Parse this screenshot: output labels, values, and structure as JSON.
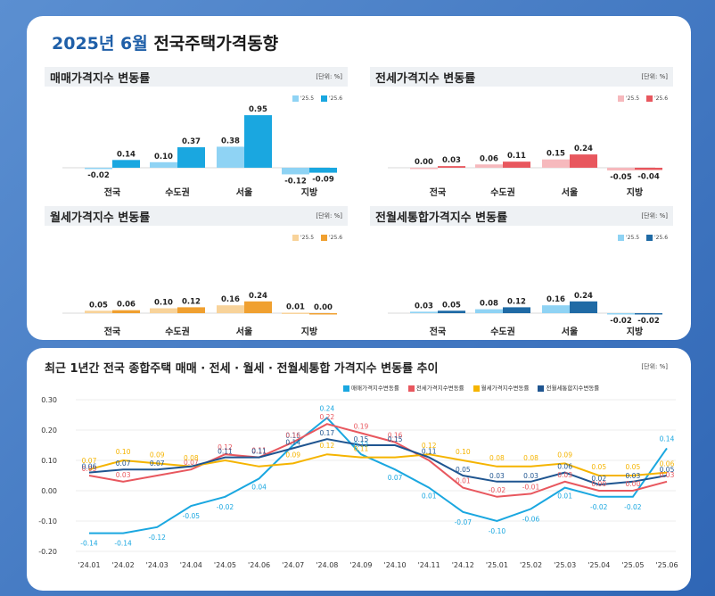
{
  "header": {
    "title_highlight": "2025년 6월",
    "title_rest": "전국주택가격동향"
  },
  "bar_charts": [
    {
      "id": "sale",
      "title": "매매가격지수 변동률",
      "unit": "[단위: %]",
      "legend": [
        "'25.5",
        "'25.6"
      ],
      "colors": {
        "prev": "#8fd3f4",
        "cur": "#1aa7e0"
      },
      "categories": [
        "전국",
        "수도권",
        "서울",
        "지방"
      ],
      "values_prev": [
        -0.02,
        0.1,
        0.38,
        -0.12
      ],
      "values_cur": [
        0.14,
        0.37,
        0.95,
        -0.09
      ],
      "labels_prev": [
        "-0.02",
        "0.10",
        "0.38",
        "-0.12"
      ],
      "labels_cur": [
        "0.14",
        "0.37",
        "0.95",
        "-0.09"
      ]
    },
    {
      "id": "jeonse",
      "title": "전세가격지수 변동률",
      "unit": "[단위: %]",
      "legend": [
        "'25.5",
        "'25.6"
      ],
      "colors": {
        "prev": "#f6b9bd",
        "cur": "#e8575e"
      },
      "categories": [
        "전국",
        "수도권",
        "서울",
        "지방"
      ],
      "values_prev": [
        0.0,
        0.06,
        0.15,
        -0.05
      ],
      "values_cur": [
        0.03,
        0.11,
        0.24,
        -0.04
      ],
      "labels_prev": [
        "0.00",
        "0.06",
        "0.15",
        "-0.05"
      ],
      "labels_cur": [
        "0.03",
        "0.11",
        "0.24",
        "-0.04"
      ]
    },
    {
      "id": "wolse",
      "title": "월세가격지수 변동률",
      "unit": "[단위: %]",
      "legend": [
        "'25.5",
        "'25.6"
      ],
      "colors": {
        "prev": "#f8d39a",
        "cur": "#f0a030"
      },
      "categories": [
        "전국",
        "수도권",
        "서울",
        "지방"
      ],
      "values_prev": [
        0.05,
        0.1,
        0.16,
        0.01
      ],
      "values_cur": [
        0.06,
        0.12,
        0.24,
        0.0
      ],
      "labels_prev": [
        "0.05",
        "0.10",
        "0.16",
        "0.01"
      ],
      "labels_cur": [
        "0.06",
        "0.12",
        "0.24",
        "0.00"
      ]
    },
    {
      "id": "combined",
      "title": "전월세통합가격지수 변동률",
      "unit": "[단위: %]",
      "legend": [
        "'25.5",
        "'25.6"
      ],
      "colors": {
        "prev": "#8fd3f4",
        "cur": "#1f6aa5"
      },
      "categories": [
        "전국",
        "수도권",
        "서울",
        "지방"
      ],
      "values_prev": [
        0.03,
        0.08,
        0.16,
        -0.02
      ],
      "values_cur": [
        0.05,
        0.12,
        0.24,
        -0.02
      ],
      "labels_prev": [
        "0.03",
        "0.08",
        "0.16",
        "-0.02"
      ],
      "labels_cur": [
        "0.05",
        "0.12",
        "0.24",
        "-0.02"
      ]
    }
  ],
  "line_chart": {
    "title": "최근 1년간 전국 종합주택 매매 · 전세 · 월세 · 전월세통합 가격지수 변동률 추이",
    "unit": "[단위: %]",
    "x": [
      "'24.01",
      "'24.02",
      "'24.03",
      "'24.04",
      "'24.05",
      "'24.06",
      "'24.07",
      "'24.08",
      "'24.09",
      "'24.10",
      "'24.11",
      "'24.12",
      "'25.01",
      "'25.02",
      "'25.03",
      "'25.04",
      "'25.05",
      "'25.06"
    ],
    "y_ticks": [
      "0.30",
      "0.20",
      "0.10",
      "0.00",
      "-0.10",
      "-0.20"
    ],
    "ylim": [
      -0.2,
      0.3
    ]
  },
  "chart_data": {
    "type": "line",
    "title": "최근 1년간 전국 종합주택 매매 · 전세 · 월세 · 전월세통합 가격지수 변동률 추이",
    "xlabel": "",
    "ylabel": "%",
    "x": [
      "'24.01",
      "'24.02",
      "'24.03",
      "'24.04",
      "'24.05",
      "'24.06",
      "'24.07",
      "'24.08",
      "'24.09",
      "'24.10",
      "'24.11",
      "'24.12",
      "'25.01",
      "'25.02",
      "'25.03",
      "'25.04",
      "'25.05",
      "'25.06"
    ],
    "ylim": [
      -0.2,
      0.3
    ],
    "series": [
      {
        "name": "매매가격지수변동률",
        "color": "#1aa7e0",
        "values": [
          -0.14,
          -0.14,
          -0.12,
          -0.05,
          -0.02,
          0.04,
          0.15,
          0.24,
          0.12,
          0.07,
          0.01,
          -0.07,
          -0.1,
          -0.06,
          0.01,
          -0.02,
          -0.02,
          0.14
        ],
        "labels": [
          "-0.14",
          "-0.14",
          "-0.12",
          "-0.05",
          "-0.02",
          "0.04",
          "0.15",
          "0.24",
          "0.12",
          "0.07",
          "0.01",
          "-0.07",
          "-0.10",
          "-0.06",
          "0.01",
          "-0.02",
          "-0.02",
          "0.14"
        ]
      },
      {
        "name": "전세가격지수변동률",
        "color": "#e8575e",
        "values": [
          0.05,
          0.03,
          0.05,
          0.07,
          0.12,
          0.11,
          0.16,
          0.22,
          0.19,
          0.16,
          0.1,
          0.01,
          -0.02,
          -0.01,
          0.03,
          0.0,
          0.0,
          0.03
        ],
        "labels": [
          "0.05",
          "0.03",
          "",
          "0.07",
          "0.12",
          "0.11",
          "0.16",
          "0.22",
          "0.19",
          "0.16",
          "",
          "0.01",
          "-0.02",
          "-0.01",
          "0.03",
          "0.00",
          "0.00",
          "0.03"
        ]
      },
      {
        "name": "월세가격지수변동률",
        "color": "#f5b400",
        "values": [
          0.07,
          0.1,
          0.09,
          0.08,
          0.1,
          0.08,
          0.09,
          0.12,
          0.11,
          0.11,
          0.12,
          0.1,
          0.08,
          0.08,
          0.09,
          0.05,
          0.05,
          0.06
        ],
        "labels": [
          "0.07",
          "0.10",
          "0.09",
          "0.08",
          "",
          "",
          "0.09",
          "0.12",
          "0.11",
          "",
          "0.12",
          "0.10",
          "0.08",
          "0.08",
          "0.09",
          "0.05",
          "0.05",
          "0.06"
        ]
      },
      {
        "name": "전월세통합지수변동률",
        "color": "#1f5590",
        "values": [
          0.06,
          0.07,
          0.07,
          0.08,
          0.11,
          0.11,
          0.14,
          0.17,
          0.15,
          0.15,
          0.11,
          0.05,
          0.03,
          0.03,
          0.06,
          0.02,
          0.03,
          0.05
        ],
        "labels": [
          "0.06",
          "0.07",
          "0.07",
          "",
          "0.11",
          "0.11",
          "0.14",
          "0.17",
          "0.15",
          "0.15",
          "0.11",
          "0.05",
          "0.03",
          "0.03",
          "0.06",
          "0.02",
          "0.03",
          "0.05"
        ]
      }
    ]
  }
}
